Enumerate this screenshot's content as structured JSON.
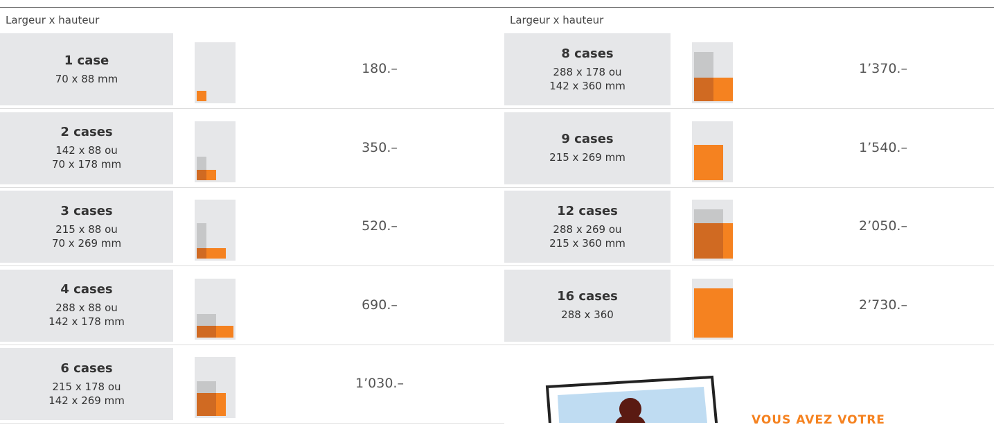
{
  "tables": [
    {
      "header": "Largeur x hauteur",
      "rows": [
        {
          "name": "1 case",
          "size": [
            "70 x 88 mm"
          ],
          "price": "180.–"
        },
        {
          "name": "2 cases",
          "size": [
            "142 x 88 ou",
            "70 x 178 mm"
          ],
          "price": "350.–"
        },
        {
          "name": "3 cases",
          "size": [
            "215 x 88 ou",
            "70 x 269 mm"
          ],
          "price": "520.–"
        },
        {
          "name": "4 cases",
          "size": [
            "288 x 88 ou",
            "142 x 178 mm"
          ],
          "price": "690.–"
        },
        {
          "name": "6 cases",
          "size": [
            "215 x 178 ou",
            "142 x 269 mm"
          ],
          "price": "1’030.–"
        }
      ]
    },
    {
      "header": "Largeur x hauteur",
      "rows": [
        {
          "name": "8 cases",
          "size": [
            "288 x 178 ou",
            "142 x 360 mm"
          ],
          "price": "1’370.–"
        },
        {
          "name": "9 cases",
          "size": [
            "215 x 269 mm"
          ],
          "price": "1’540.–"
        },
        {
          "name": "12 cases",
          "size": [
            "288 x 269 ou",
            "215 x 360 mm"
          ],
          "price": "2’050.–"
        },
        {
          "name": "16 cases",
          "size": [
            "288 x 360"
          ],
          "price": "2’730.–"
        }
      ]
    }
  ],
  "promo": "VOUS AVEZ VOTRE"
}
